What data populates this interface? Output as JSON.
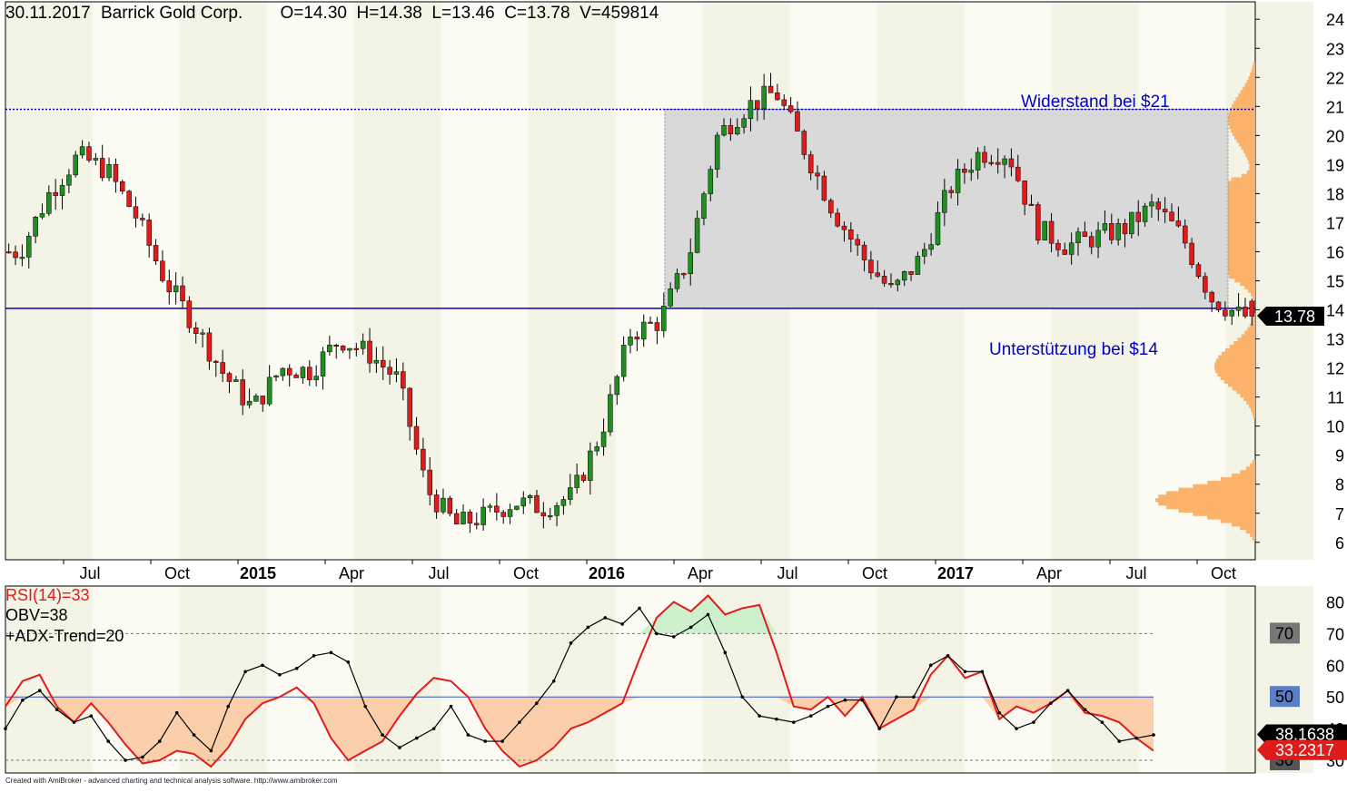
{
  "header": {
    "date": "30.11.2017",
    "symbol": "Barrick Gold Corp.",
    "ohlcv": "O=14.30  H=14.38  L=13.46  C=13.78  V=459814"
  },
  "annotations": {
    "resistance": "Widerstand bei $21",
    "support": "Unterstützung bei $14",
    "last_price": "13.78"
  },
  "footer": "Created with AmiBroker - advanced charting and technical analysis software. http://www.amibroker.com",
  "colors": {
    "up": "#1f8f1f",
    "down": "#e01b1b",
    "support_line": "#0000cc",
    "zone": "#d9d9d9",
    "volume_profile": "#fbb26a",
    "rsi": "#e01b1b",
    "obv": "#000000"
  },
  "chart_data": [
    {
      "type": "candlestick",
      "title": "30.11.2017 Barrick Gold Corp.",
      "x_tick_labels": [
        "Jul",
        "Oct",
        "2015",
        "Apr",
        "Jul",
        "Oct",
        "2016",
        "Apr",
        "Jul",
        "Oct",
        "2017",
        "Apr",
        "Jul",
        "Oct"
      ],
      "y_tick_labels": [
        "6",
        "7",
        "8",
        "9",
        "10",
        "11",
        "12",
        "13",
        "14",
        "15",
        "16",
        "17",
        "18",
        "19",
        "20",
        "21",
        "22",
        "23",
        "24"
      ],
      "ylim": [
        5.4,
        24.6
      ],
      "resistance": 20.9,
      "support": 14.05,
      "zone": {
        "from": "2016-04",
        "to": "2017-11",
        "low": 14.05,
        "high": 20.9
      },
      "last": {
        "open": 14.3,
        "high": 14.38,
        "low": 13.46,
        "close": 13.78,
        "volume": 459814
      },
      "close_path": [
        [
          "2014-05",
          16.0
        ],
        [
          "2014-06",
          18.0
        ],
        [
          "2014-07",
          19.3
        ],
        [
          "2014-08",
          18.8
        ],
        [
          "2014-09",
          17.2
        ],
        [
          "2014-10",
          15.0
        ],
        [
          "2014-11",
          13.5
        ],
        [
          "2014-12",
          11.8
        ],
        [
          "2015-01",
          10.6
        ],
        [
          "2015-02",
          12.0
        ],
        [
          "2015-03",
          11.9
        ],
        [
          "2015-04",
          13.0
        ],
        [
          "2015-05",
          12.5
        ],
        [
          "2015-06",
          11.6
        ],
        [
          "2015-07",
          7.8
        ],
        [
          "2015-08",
          6.6
        ],
        [
          "2015-09",
          6.9
        ],
        [
          "2015-10",
          7.4
        ],
        [
          "2015-11",
          7.2
        ],
        [
          "2015-12",
          7.6
        ],
        [
          "2016-01",
          9.8
        ],
        [
          "2016-02",
          13.2
        ],
        [
          "2016-03",
          13.6
        ],
        [
          "2016-04",
          15.8
        ],
        [
          "2016-05",
          20.0
        ],
        [
          "2016-06",
          21.0
        ],
        [
          "2016-07",
          21.5
        ],
        [
          "2016-08",
          19.5
        ],
        [
          "2016-09",
          17.4
        ],
        [
          "2016-10",
          15.8
        ],
        [
          "2016-11",
          14.6
        ],
        [
          "2016-12",
          15.8
        ],
        [
          "2017-01",
          18.2
        ],
        [
          "2017-02",
          19.4
        ],
        [
          "2017-03",
          19.4
        ],
        [
          "2017-04",
          16.8
        ],
        [
          "2017-05",
          16.2
        ],
        [
          "2017-06",
          16.5
        ],
        [
          "2017-07",
          16.8
        ],
        [
          "2017-08",
          17.6
        ],
        [
          "2017-09",
          16.5
        ],
        [
          "2017-10",
          14.4
        ],
        [
          "2017-11",
          13.78
        ]
      ]
    },
    {
      "type": "line",
      "legend": [
        "RSI(14)=33",
        "OBV=38",
        "+ADX-Trend=20"
      ],
      "y_tick_labels": [
        "30",
        "40",
        "50",
        "60",
        "70",
        "80"
      ],
      "ylim": [
        26,
        85
      ],
      "levels": [
        30,
        50,
        70
      ],
      "level_badges": [
        "70",
        "50",
        "30"
      ],
      "value_badges": [
        "38.1638",
        "33.2317"
      ],
      "series": [
        {
          "name": "RSI(14)=33",
          "values": [
            47,
            55,
            57,
            47,
            42,
            48,
            42,
            35,
            29,
            30,
            33,
            32,
            28,
            34,
            43,
            48,
            50,
            53,
            48,
            37,
            30,
            33,
            36,
            44,
            51,
            56,
            55,
            50,
            40,
            33,
            28,
            30,
            34,
            40,
            42,
            45,
            48,
            62,
            75,
            80,
            77,
            82,
            76,
            78,
            79,
            64,
            47,
            46,
            50,
            44,
            50,
            40,
            43,
            46,
            57,
            63,
            56,
            58,
            43,
            47,
            45,
            48,
            52,
            45,
            44,
            42,
            37,
            33
          ]
        },
        {
          "name": "OBV=38",
          "values": [
            40,
            49,
            52,
            46,
            42,
            44,
            36,
            30,
            31,
            36,
            45,
            38,
            33,
            47,
            58,
            60,
            57,
            59,
            63,
            64,
            61,
            47,
            38,
            34,
            37,
            40,
            47,
            38,
            36,
            36,
            42,
            48,
            55,
            67,
            72,
            75,
            73,
            78,
            70,
            69,
            72,
            76,
            64,
            50,
            44,
            43,
            42,
            44,
            47,
            49,
            49,
            40,
            50,
            50,
            60,
            63,
            58,
            58,
            45,
            40,
            42,
            48,
            52,
            46,
            42,
            36,
            37,
            38
          ]
        }
      ]
    }
  ]
}
